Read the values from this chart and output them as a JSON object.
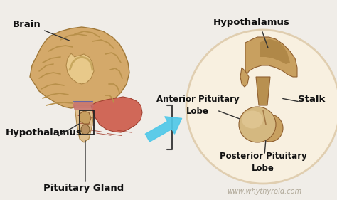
{
  "bg_color": "#f0ede8",
  "watermark": "www.whythyroid.com",
  "watermark_color": "#b0a898",
  "labels": {
    "brain": "Brain",
    "hypothalamus_left": "Hypothalamus",
    "pituitary_gland": "Pituitary Gland",
    "hypothalamus_right": "Hypothalamus",
    "anterior_pituitary": "Anterior Pituitary\nLobe",
    "posterior_pituitary": "Posterior Pituitary\nLobe",
    "stalk": "Stalk"
  },
  "brain_outer_color": "#d4a96a",
  "brain_inner_color": "#e8c98a",
  "brain_cavity_color": "#dfc090",
  "cerebellum_color": "#c96050",
  "cerebellum_line_color": "#a03828",
  "brainstem_color": "#dfc090",
  "pituitary_color": "#c8a060",
  "hypothalamus_color": "#c8a060",
  "stalk_color": "#b89050",
  "hypo_dark": "#a07840",
  "circle_bg": "#f8f0e0",
  "circle_border": "#e8d8c0",
  "arrow_color": "#50c8e8",
  "bracket_color": "#444444",
  "label_color": "#111111",
  "label_fontsize": 8.5,
  "bold_label_fontsize": 9.5,
  "wrinkle_color": "#b8904a"
}
